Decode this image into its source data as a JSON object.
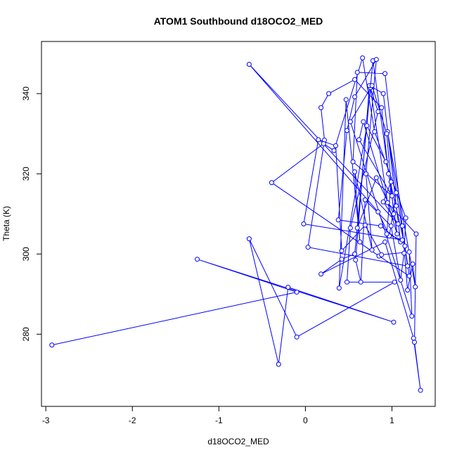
{
  "chart_data": {
    "type": "scatter",
    "title": "ATOM1 Southbound d18OCO2_MED",
    "xlabel": "d18OCO2_MED",
    "ylabel": "Theta (K)",
    "xlim": [
      -3.05,
      1.5
    ],
    "ylim": [
      262,
      353
    ],
    "x_ticks": [
      -3,
      -2,
      -1,
      0,
      1
    ],
    "y_ticks": [
      280,
      300,
      320,
      340
    ],
    "grid": false,
    "connected": true,
    "series_color": "#0000ff",
    "points": [
      [
        -2.93,
        277.3
      ],
      [
        -0.1,
        290.5
      ],
      [
        -1.25,
        298.7
      ],
      [
        1.02,
        283.0
      ],
      [
        -0.2,
        291.7
      ],
      [
        -0.31,
        272.5
      ],
      [
        -0.65,
        303.8
      ],
      [
        -0.1,
        279.3
      ],
      [
        1.03,
        293.0
      ],
      [
        0.48,
        293.0
      ],
      [
        0.52,
        306.5
      ],
      [
        0.84,
        335.5
      ],
      [
        0.75,
        341.5
      ],
      [
        0.95,
        312.8
      ],
      [
        1.28,
        305.0
      ],
      [
        1.26,
        278.0
      ],
      [
        1.33,
        266.0
      ],
      [
        1.25,
        279.0
      ],
      [
        0.92,
        303.0
      ],
      [
        0.18,
        295.0
      ],
      [
        0.42,
        298.7
      ],
      [
        0.57,
        300.0
      ],
      [
        0.78,
        348.2
      ],
      [
        1.06,
        305.0
      ],
      [
        0.67,
        333.0
      ],
      [
        0.62,
        328.5
      ],
      [
        1.0,
        314.5
      ],
      [
        0.55,
        323.0
      ],
      [
        0.6,
        345.3
      ],
      [
        0.92,
        345.0
      ],
      [
        1.12,
        307.0
      ],
      [
        1.18,
        291.0
      ],
      [
        1.24,
        297.5
      ],
      [
        1.27,
        291.8
      ],
      [
        0.95,
        330.5
      ],
      [
        1.18,
        297.0
      ],
      [
        0.03,
        301.7
      ],
      [
        0.22,
        328.4
      ],
      [
        0.18,
        336.5
      ],
      [
        0.27,
        340.0
      ],
      [
        0.57,
        343.5
      ],
      [
        0.88,
        336.5
      ],
      [
        0.96,
        320.0
      ],
      [
        1.15,
        302.0
      ],
      [
        1.2,
        294.5
      ],
      [
        0.85,
        299.5
      ],
      [
        -0.39,
        317.8
      ],
      [
        0.21,
        327.5
      ],
      [
        0.33,
        325.8
      ],
      [
        0.66,
        348.9
      ],
      [
        0.8,
        330.5
      ],
      [
        1.16,
        309.0
      ],
      [
        1.14,
        300.2
      ],
      [
        1.1,
        293.5
      ],
      [
        0.99,
        307.0
      ],
      [
        0.69,
        313.5
      ],
      [
        0.64,
        293.0
      ],
      [
        0.58,
        298.5
      ],
      [
        0.74,
        342.0
      ],
      [
        0.9,
        340.0
      ],
      [
        1.05,
        312.0
      ],
      [
        1.1,
        303.0
      ],
      [
        0.87,
        307.0
      ],
      [
        0.38,
        308.5
      ],
      [
        0.48,
        330.8
      ],
      [
        0.57,
        339.2
      ],
      [
        0.82,
        348.5
      ],
      [
        0.7,
        320.0
      ],
      [
        0.77,
        301.0
      ],
      [
        0.57,
        320.5
      ],
      [
        0.63,
        303.0
      ],
      [
        0.47,
        338.5
      ],
      [
        0.39,
        291.5
      ],
      [
        0.71,
        332.0
      ],
      [
        0.93,
        323.0
      ],
      [
        1.05,
        315.3
      ],
      [
        0.97,
        304.5
      ],
      [
        0.84,
        310.5
      ],
      [
        -0.65,
        347.3
      ],
      [
        1.07,
        307.5
      ],
      [
        0.9,
        313.0
      ],
      [
        0.99,
        318.0
      ],
      [
        0.94,
        305.0
      ],
      [
        1.12,
        303.5
      ],
      [
        -0.02,
        307.5
      ],
      [
        0.15,
        328.5
      ],
      [
        0.35,
        327.0
      ],
      [
        0.42,
        300.8
      ],
      [
        0.69,
        307.2
      ],
      [
        0.88,
        299.8
      ],
      [
        1.2,
        300.5
      ],
      [
        1.23,
        284.5
      ],
      [
        0.52,
        333.0
      ],
      [
        0.77,
        342.0
      ],
      [
        0.94,
        330.0
      ],
      [
        1.02,
        310.0
      ],
      [
        0.82,
        319.0
      ],
      [
        0.6,
        306.5
      ]
    ]
  }
}
